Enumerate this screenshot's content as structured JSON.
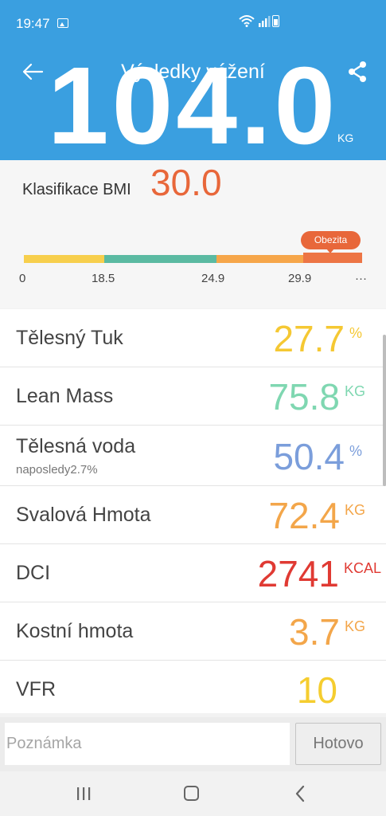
{
  "status_bar": {
    "time": "19:47"
  },
  "header": {
    "title": "Výsledky vážení",
    "weight": "104.0",
    "weight_unit": "KG"
  },
  "bmi": {
    "label": "Klasifikace BMI",
    "value": "30.0",
    "category": "Obezita",
    "ticks": [
      "0",
      "18.5",
      "24.9",
      "29.9",
      "···"
    ],
    "segment_colors": [
      "#f7cf4d",
      "#5bbaa2",
      "#f6a64a",
      "#ed7545"
    ]
  },
  "metrics": [
    {
      "label": "Tělesný Tuk",
      "value": "27.7",
      "unit": "%",
      "color": "#f5c833"
    },
    {
      "label": "Lean Mass",
      "value": "75.8",
      "unit": "KG",
      "color": "#7fd7b1"
    },
    {
      "label": "Tělesná voda",
      "sub": "naposledy2.7%",
      "value": "50.4",
      "unit": "%",
      "color": "#7b9edb"
    },
    {
      "label": "Svalová Hmota",
      "value": "72.4",
      "unit": "KG",
      "color": "#f3a64a"
    },
    {
      "label": "DCI",
      "value": "2741",
      "unit": "KCAL",
      "color": "#e03a33"
    },
    {
      "label": "Kostní hmota",
      "value": "3.7",
      "unit": "KG",
      "color": "#f3a64a"
    },
    {
      "label": "VFR",
      "value": "10",
      "unit": "",
      "color": "#f5cd2f"
    }
  ],
  "note": {
    "placeholder": "Poznámka",
    "done_label": "Hotovo"
  },
  "colors": {
    "header_bg": "#3a9fe0",
    "bmi_value": "#e8673a"
  }
}
